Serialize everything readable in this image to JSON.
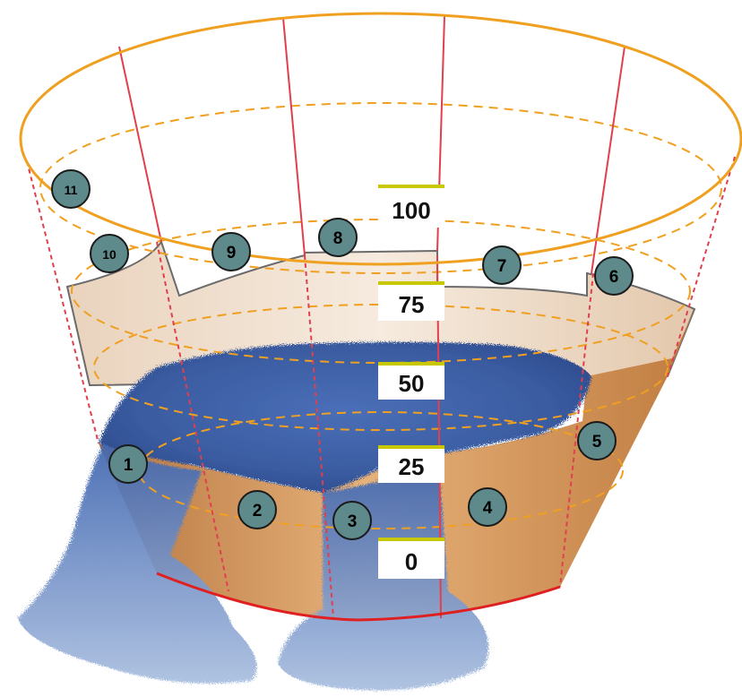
{
  "diagram": {
    "scale_marks": [
      "0",
      "25",
      "50",
      "75",
      "100"
    ],
    "staves": [
      {
        "number": "1",
        "level": 37
      },
      {
        "number": "2",
        "level": 20
      },
      {
        "number": "3",
        "level": 0
      },
      {
        "number": "4",
        "level": 30
      },
      {
        "number": "5",
        "level": 50
      },
      {
        "number": "6",
        "level": 95
      },
      {
        "number": "7",
        "level": 75
      },
      {
        "number": "8",
        "level": 95
      },
      {
        "number": "9",
        "level": 72
      },
      {
        "number": "10",
        "level": 90
      },
      {
        "number": "11",
        "level": 0
      }
    ],
    "colors": {
      "rim": "#f0a020",
      "stave_line": "#e0404e",
      "base_rim": "#e02020",
      "wood_dark": "#c98a52",
      "wood_light": "#efd9c2",
      "water": "#3d5fa5",
      "badge_fill": "#5e8a8c",
      "scale_bar": "#c8c800"
    }
  }
}
